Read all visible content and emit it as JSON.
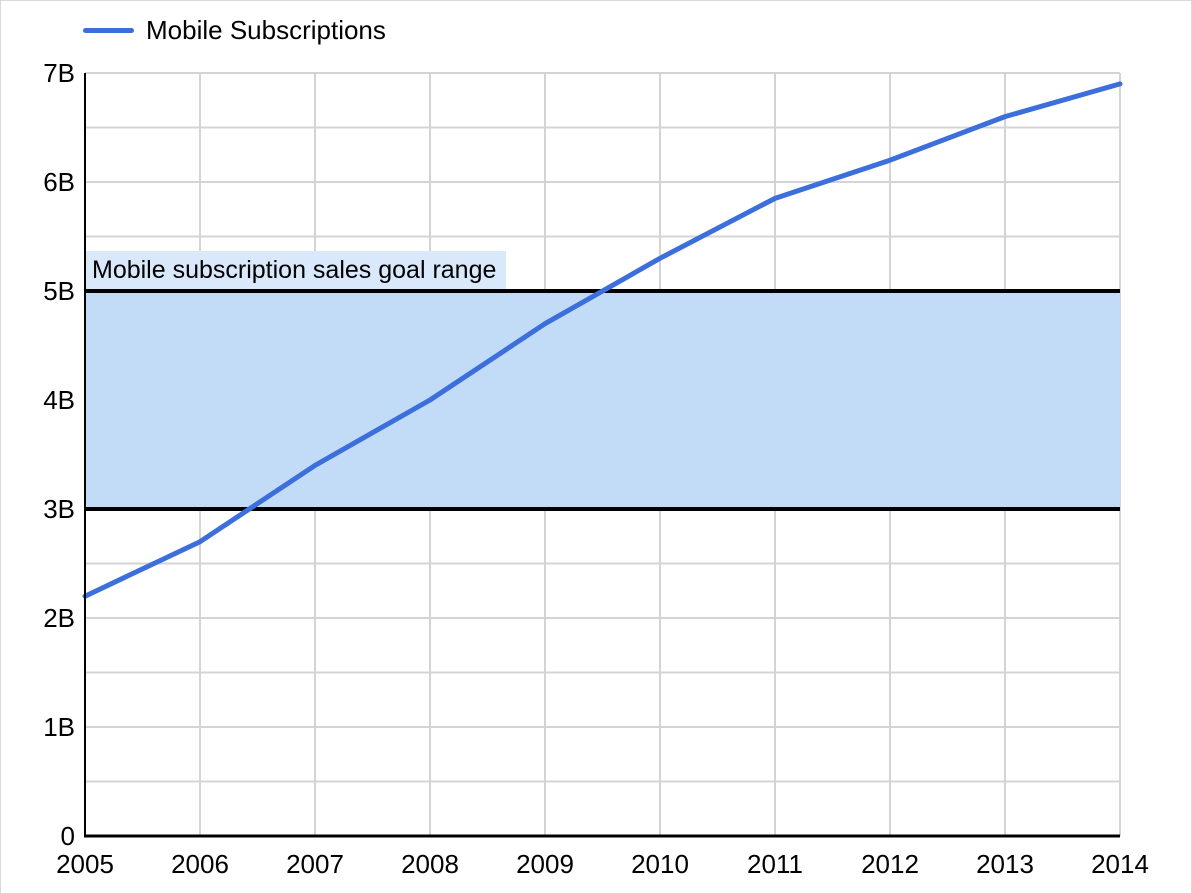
{
  "legend": {
    "label": "Mobile Subscriptions"
  },
  "band": {
    "label": "Mobile subscription sales goal range"
  },
  "colors": {
    "line": "#3c6fdb",
    "band_fill": "#c2dcf7",
    "band_border": "#000000",
    "band_label_bg": "#d9e8fb",
    "grid": "#d4d4d4",
    "axis": "#000000",
    "text": "#000000",
    "background": "#ffffff"
  },
  "chart_data": {
    "type": "line",
    "title": "",
    "xlabel": "",
    "ylabel": "",
    "x": [
      "2005",
      "2006",
      "2007",
      "2008",
      "2009",
      "2010",
      "2011",
      "2012",
      "2013",
      "2014"
    ],
    "series": [
      {
        "name": "Mobile Subscriptions",
        "values": [
          2.2,
          2.7,
          3.4,
          4.0,
          4.7,
          5.3,
          5.85,
          6.2,
          6.6,
          6.9
        ]
      }
    ],
    "units": "billions",
    "ylim": [
      0,
      7
    ],
    "y_ticks": [
      0,
      1,
      2,
      3,
      4,
      5,
      6,
      7
    ],
    "y_tick_labels": [
      "0",
      "1B",
      "2B",
      "3B",
      "4B",
      "5B",
      "6B",
      "7B"
    ],
    "y_minor_step": 0.5,
    "grid": true,
    "legend_position": "top-left",
    "goal_range": {
      "min": 3,
      "max": 5,
      "label": "Mobile subscription sales goal range"
    }
  }
}
